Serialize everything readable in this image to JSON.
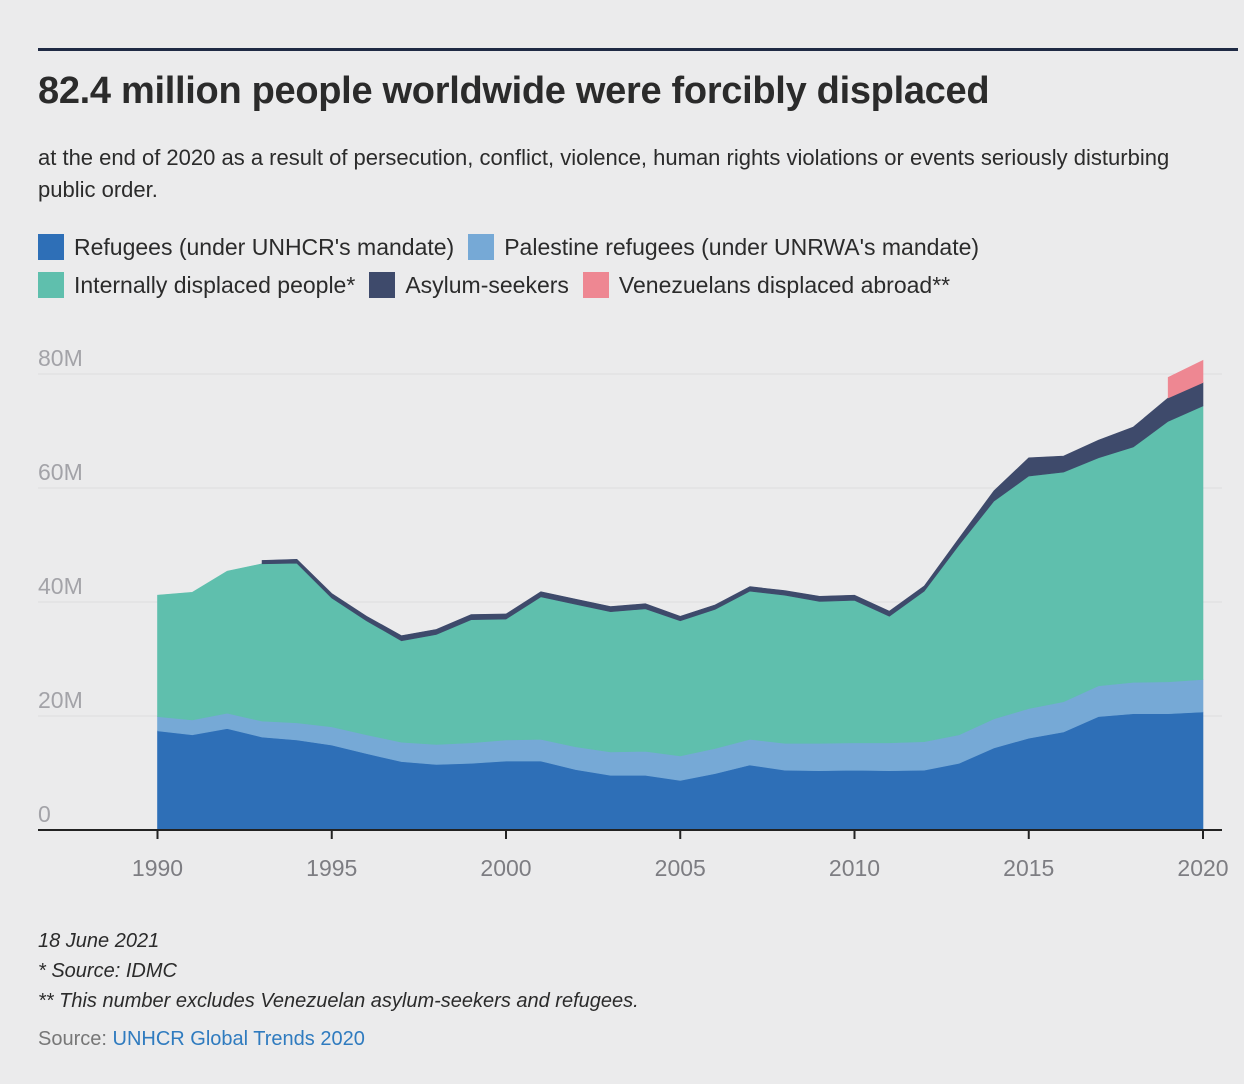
{
  "title": "82.4 million people worldwide were forcibly displaced",
  "subtitle": "at the end of 2020 as a result of persecution, conflict, violence, human rights violations or events seriously disturbing public order.",
  "legend": [
    {
      "label": "Refugees (under UNHCR's mandate)",
      "color": "#2e6fb7"
    },
    {
      "label": "Palestine refugees (under UNRWA's mandate)",
      "color": "#76a9d6"
    },
    {
      "label": "Internally displaced people*",
      "color": "#5fbfad"
    },
    {
      "label": "Asylum-seekers",
      "color": "#3e4a6b"
    },
    {
      "label": "Venezuelans displaced abroad**",
      "color": "#ee8792"
    }
  ],
  "footnotes": {
    "date": "18 June 2021",
    "note1": "* Source: IDMC",
    "note2": "** This number excludes Venezuelan asylum-seekers and refugees."
  },
  "source": {
    "label": "Source:",
    "link_text": "UNHCR Global Trends 2020"
  },
  "chart_data": {
    "type": "area",
    "stacked": true,
    "x": [
      1990,
      1991,
      1992,
      1993,
      1994,
      1995,
      1996,
      1997,
      1998,
      1999,
      2000,
      2001,
      2002,
      2003,
      2004,
      2005,
      2006,
      2007,
      2008,
      2009,
      2010,
      2011,
      2012,
      2013,
      2014,
      2015,
      2016,
      2017,
      2018,
      2019,
      2020
    ],
    "series": [
      {
        "name": "Refugees (under UNHCR's mandate)",
        "color": "#2e6fb7",
        "values": [
          17.4,
          16.7,
          17.8,
          16.3,
          15.8,
          14.9,
          13.4,
          12.0,
          11.5,
          11.7,
          12.1,
          12.1,
          10.6,
          9.6,
          9.6,
          8.7,
          9.9,
          11.4,
          10.5,
          10.4,
          10.5,
          10.4,
          10.5,
          11.7,
          14.4,
          16.1,
          17.2,
          19.9,
          20.4,
          20.4,
          20.7
        ],
        "labels_visible": false
      },
      {
        "name": "Palestine refugees (under UNRWA's mandate)",
        "color": "#76a9d6",
        "values": [
          2.5,
          2.6,
          2.7,
          2.8,
          3.0,
          3.2,
          3.3,
          3.4,
          3.5,
          3.6,
          3.7,
          3.8,
          4.0,
          4.1,
          4.2,
          4.3,
          4.4,
          4.5,
          4.7,
          4.8,
          4.8,
          4.9,
          5.0,
          5.0,
          5.1,
          5.2,
          5.3,
          5.4,
          5.5,
          5.6,
          5.7
        ]
      },
      {
        "name": "Internally displaced people*",
        "color": "#5fbfad",
        "values": [
          21.3,
          22.4,
          24.9,
          27.6,
          28.0,
          22.6,
          20.0,
          17.8,
          19.3,
          21.6,
          21.2,
          25.0,
          25.0,
          24.6,
          25.0,
          23.7,
          24.4,
          26.0,
          26.0,
          24.9,
          25.0,
          22.2,
          26.4,
          33.3,
          38.2,
          40.8,
          40.3,
          40.0,
          41.3,
          45.7,
          48.0
        ]
      },
      {
        "name": "Asylum-seekers",
        "color": "#3e4a6b",
        "values": [
          0,
          0,
          0,
          0.6,
          0.7,
          0.8,
          0.8,
          0.9,
          0.9,
          0.9,
          0.9,
          0.9,
          0.9,
          0.9,
          0.9,
          0.8,
          0.8,
          0.8,
          0.8,
          0.9,
          0.9,
          0.9,
          0.9,
          1.2,
          1.8,
          3.2,
          2.8,
          3.1,
          3.5,
          4.1,
          4.1
        ]
      },
      {
        "name": "Venezuelans displaced abroad**",
        "color": "#ee8792",
        "values": [
          0,
          0,
          0,
          0,
          0,
          0,
          0,
          0,
          0,
          0,
          0,
          0,
          0,
          0,
          0,
          0,
          0,
          0,
          0,
          0,
          0,
          0,
          0,
          0,
          0,
          0,
          0,
          0,
          0,
          3.6,
          3.9
        ]
      }
    ],
    "xlim": [
      1987.0,
      2020.5
    ],
    "ylim": [
      0,
      85
    ],
    "y_ticks": [
      0,
      20,
      40,
      60,
      80
    ],
    "y_tick_labels": [
      "0",
      "20M",
      "40M",
      "60M",
      "80M"
    ],
    "x_ticks": [
      1990,
      1995,
      2000,
      2005,
      2010,
      2015,
      2020
    ],
    "x_tick_labels": [
      "1990",
      "1995",
      "2000",
      "2005",
      "2010",
      "2015",
      "2020"
    ],
    "grid": "horizontal",
    "legend_position": "top"
  }
}
